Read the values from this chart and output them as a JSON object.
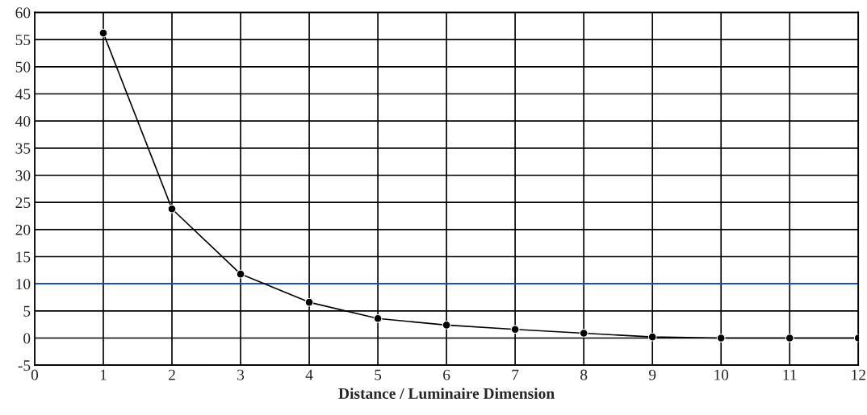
{
  "chart_data": {
    "type": "line",
    "xlabel": "Distance / Luminaire Dimension",
    "x": [
      1,
      2,
      3,
      4,
      5,
      6,
      7,
      8,
      9,
      10,
      11,
      12
    ],
    "series": [
      {
        "color": "#000000",
        "values": [
          56.2,
          23.8,
          11.8,
          6.6,
          3.6,
          2.4,
          1.6,
          0.9,
          0.2,
          0,
          0,
          0
        ]
      }
    ],
    "xlim": [
      0,
      12
    ],
    "xticks": [
      0,
      1,
      2,
      3,
      4,
      5,
      6,
      7,
      8,
      9,
      10,
      11,
      12
    ],
    "ylim": [
      -5,
      60
    ],
    "yticks": [
      -5,
      0,
      5,
      10,
      15,
      20,
      25,
      30,
      35,
      40,
      45,
      50,
      55,
      60
    ],
    "ref_lines": [
      {
        "axis": "y",
        "value": 10,
        "color": "#1f4fc8"
      }
    ],
    "grid": true,
    "marker": "circle",
    "line_style": "solid"
  }
}
